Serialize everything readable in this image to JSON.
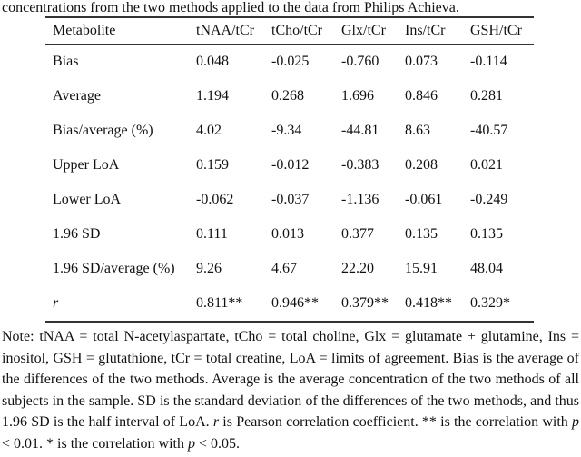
{
  "caption_fragment": "concentrations from the two methods applied to the data from Philips Achieva.",
  "table": {
    "headers": [
      "Metabolite",
      "tNAA/tCr",
      "tCho/tCr",
      "Glx/tCr",
      "Ins/tCr",
      "GSH/tCr"
    ],
    "rows": [
      {
        "label": "Bias",
        "values": [
          "0.048",
          "-0.025",
          "-0.760",
          "0.073",
          "-0.114"
        ]
      },
      {
        "label": "Average",
        "values": [
          "1.194",
          "0.268",
          "1.696",
          "0.846",
          "0.281"
        ]
      },
      {
        "label": "Bias/average (%)",
        "values": [
          "4.02",
          "-9.34",
          "-44.81",
          "8.63",
          "-40.57"
        ]
      },
      {
        "label": "Upper LoA",
        "values": [
          "0.159",
          "-0.012",
          "-0.383",
          "0.208",
          "0.021"
        ]
      },
      {
        "label": "Lower LoA",
        "values": [
          "-0.062",
          "-0.037",
          "-1.136",
          "-0.061",
          "-0.249"
        ]
      },
      {
        "label": "1.96 SD",
        "values": [
          "0.111",
          "0.013",
          "0.377",
          "0.135",
          "0.135"
        ]
      },
      {
        "label": "1.96 SD/average (%)",
        "values": [
          "9.26",
          "4.67",
          "22.20",
          "15.91",
          "48.04"
        ]
      },
      {
        "label": "r",
        "values": [
          "0.811**",
          "0.946**",
          "0.379**",
          "0.418**",
          "0.329*"
        ]
      }
    ]
  },
  "note": {
    "p1": "Note: tNAA = total N-acetylaspartate, tCho = total choline, Glx = glutamate + glutamine, Ins = inositol, GSH = glutathione, tCr = total creatine, LoA = limits of agreement. Bias is the average of the differences of the two methods. Average is the average concentration of the two methods of all subjects in the sample. SD is the standard deviation of the differences of the two methods, and thus 1.96 SD is the half interval of LoA. ",
    "r": "r",
    "p2": " is Pearson correlation coefficient. ** is the correlation with ",
    "p_a": "p",
    "p3": " < 0.01. * is the correlation with ",
    "p_b": "p",
    "p4": " < 0.05."
  }
}
